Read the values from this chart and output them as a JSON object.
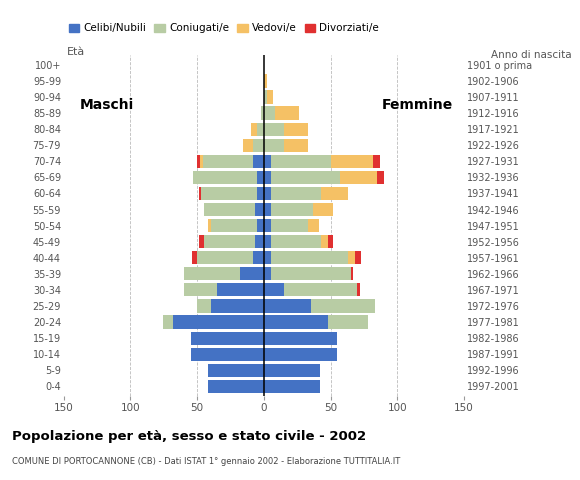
{
  "age_groups": [
    "0-4",
    "5-9",
    "10-14",
    "15-19",
    "20-24",
    "25-29",
    "30-34",
    "35-39",
    "40-44",
    "45-49",
    "50-54",
    "55-59",
    "60-64",
    "65-69",
    "70-74",
    "75-79",
    "80-84",
    "85-89",
    "90-94",
    "95-99",
    "100+"
  ],
  "birth_years": [
    "1997-2001",
    "1992-1996",
    "1987-1991",
    "1982-1986",
    "1977-1981",
    "1972-1976",
    "1967-1971",
    "1962-1966",
    "1957-1961",
    "1952-1956",
    "1947-1951",
    "1942-1946",
    "1937-1941",
    "1932-1936",
    "1927-1931",
    "1922-1926",
    "1917-1921",
    "1912-1916",
    "1907-1911",
    "1902-1906",
    "1901 o prima"
  ],
  "males": {
    "celibi": [
      42,
      42,
      55,
      55,
      68,
      40,
      35,
      18,
      8,
      7,
      5,
      7,
      5,
      5,
      8,
      0,
      0,
      0,
      0,
      0,
      0
    ],
    "coniugati": [
      0,
      0,
      0,
      0,
      8,
      10,
      25,
      42,
      42,
      38,
      35,
      38,
      42,
      48,
      38,
      8,
      5,
      2,
      0,
      0,
      0
    ],
    "vedovi": [
      0,
      0,
      0,
      0,
      0,
      0,
      0,
      0,
      0,
      0,
      2,
      0,
      0,
      0,
      2,
      8,
      5,
      0,
      0,
      0,
      0
    ],
    "divorziati": [
      0,
      0,
      0,
      0,
      0,
      0,
      0,
      0,
      4,
      4,
      0,
      0,
      2,
      0,
      2,
      0,
      0,
      0,
      0,
      0,
      0
    ]
  },
  "females": {
    "nubili": [
      42,
      42,
      55,
      55,
      48,
      35,
      15,
      5,
      5,
      5,
      5,
      5,
      5,
      5,
      5,
      0,
      0,
      0,
      0,
      0,
      0
    ],
    "coniugate": [
      0,
      0,
      0,
      0,
      30,
      48,
      55,
      60,
      58,
      38,
      28,
      32,
      38,
      52,
      45,
      15,
      15,
      8,
      2,
      0,
      0
    ],
    "vedove": [
      0,
      0,
      0,
      0,
      0,
      0,
      0,
      0,
      5,
      5,
      8,
      15,
      20,
      28,
      32,
      18,
      18,
      18,
      5,
      2,
      0
    ],
    "divorziate": [
      0,
      0,
      0,
      0,
      0,
      0,
      2,
      2,
      5,
      4,
      0,
      0,
      0,
      5,
      5,
      0,
      0,
      0,
      0,
      0,
      0
    ]
  },
  "colors": {
    "celibi": "#4472c4",
    "coniugati": "#b8cca4",
    "vedovi": "#f5c165",
    "divorziati": "#e03030"
  },
  "title": "Popolazione per età, sesso e stato civile - 2002",
  "subtitle": "COMUNE DI PORTOCANNONE (CB) - Dati ISTAT 1° gennaio 2002 - Elaborazione TUTTITALIA.IT",
  "xlabel_left": "Maschi",
  "xlabel_right": "Femmine",
  "ylabel": "Età",
  "ylabel_right": "Anno di nascita",
  "xlim": 150,
  "legend_labels": [
    "Celibi/Nubili",
    "Coniugati/e",
    "Vedovi/e",
    "Divorziati/e"
  ],
  "background_color": "#ffffff",
  "grid_color": "#bbbbbb"
}
